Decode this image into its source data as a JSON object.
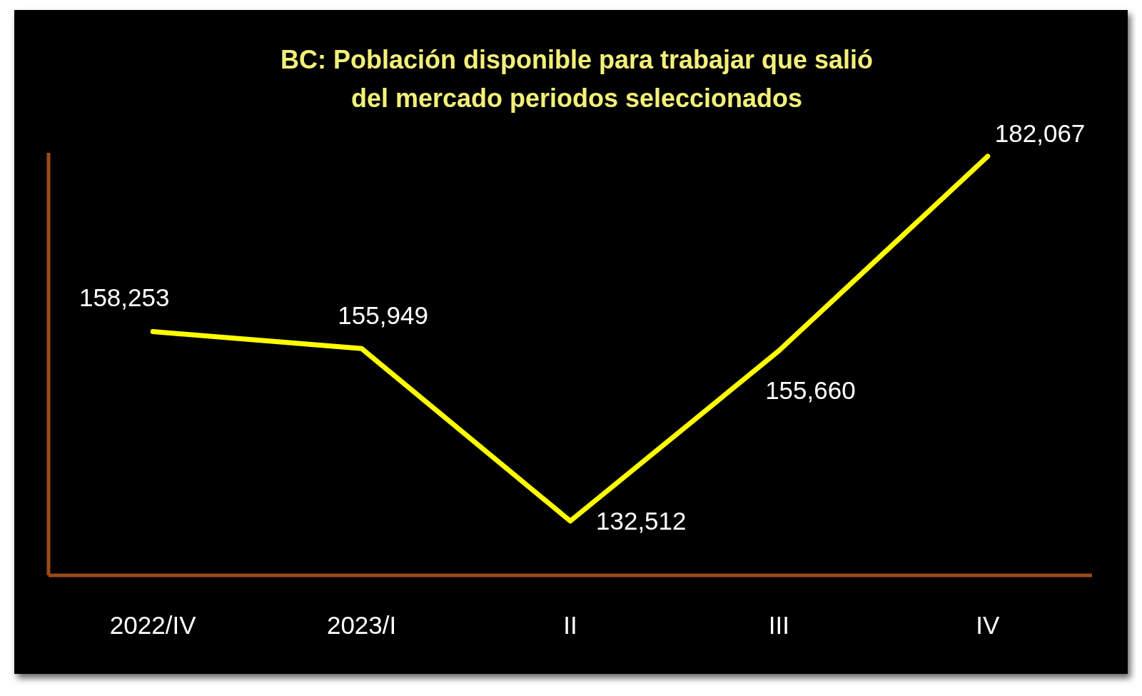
{
  "chart_data": {
    "type": "line",
    "title": "BC: Población disponible para trabajar que salió\ndel mercado periodos seleccionados",
    "categories": [
      "2022/IV",
      "2023/I",
      "II",
      "III",
      "IV"
    ],
    "series": [
      {
        "color": "#ffff00",
        "values": [
          158253,
          155949,
          132512,
          155660,
          182067
        ],
        "value_labels": [
          "158,253",
          "155,949",
          "132,512",
          "155,660",
          "182,067"
        ]
      }
    ],
    "line_style": "solid"
  }
}
